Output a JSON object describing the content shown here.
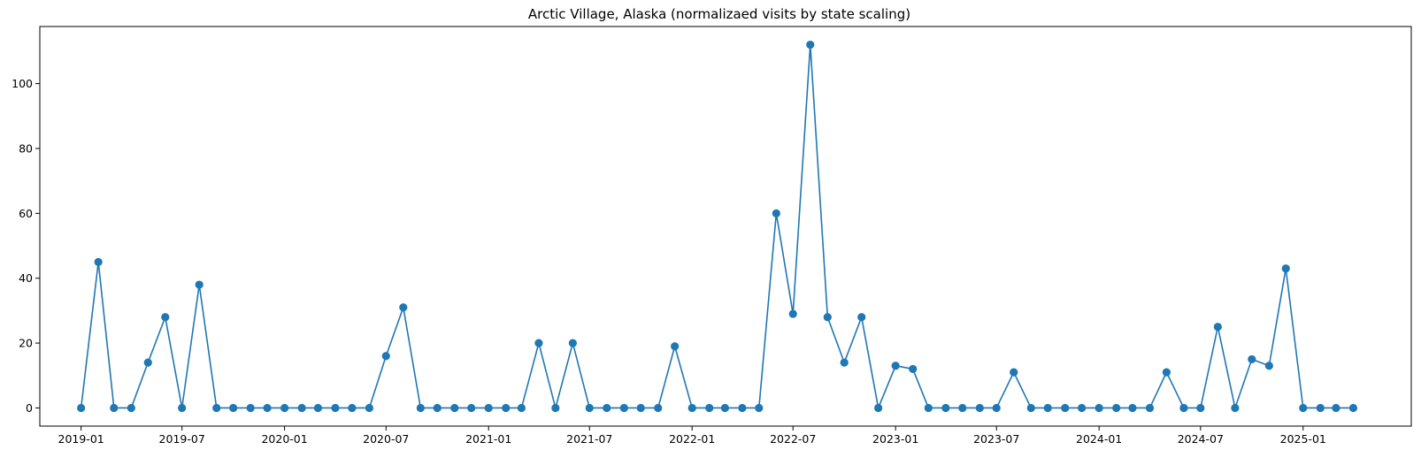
{
  "chart_data": {
    "type": "line",
    "title": "Arctic Village, Alaska (normalizaed visits by state scaling)",
    "xlabel": "",
    "ylabel": "",
    "x_tick_labels": [
      "2019-01",
      "2019-07",
      "2020-01",
      "2020-07",
      "2021-01",
      "2021-07",
      "2022-01",
      "2022-07",
      "2023-01",
      "2023-07",
      "2024-01",
      "2024-07",
      "2025-01"
    ],
    "y_ticks": [
      0,
      20,
      40,
      60,
      80,
      100
    ],
    "xlim": [
      "2018-10-19",
      "2025-07-14"
    ],
    "ylim": [
      -5.6,
      117.6
    ],
    "grid": false,
    "line_color": "#1f77b4",
    "marker": "circle",
    "series": [
      {
        "x": [
          "2019-01",
          "2019-02",
          "2019-03",
          "2019-04",
          "2019-05",
          "2019-06",
          "2019-07",
          "2019-08",
          "2019-09",
          "2019-10",
          "2019-11",
          "2019-12",
          "2020-01",
          "2020-02",
          "2020-03",
          "2020-04",
          "2020-05",
          "2020-06",
          "2020-07",
          "2020-08",
          "2020-09",
          "2020-10",
          "2020-11",
          "2020-12",
          "2021-01",
          "2021-02",
          "2021-03",
          "2021-04",
          "2021-05",
          "2021-06",
          "2021-07",
          "2021-08",
          "2021-09",
          "2021-10",
          "2021-11",
          "2021-12",
          "2022-01",
          "2022-02",
          "2022-03",
          "2022-04",
          "2022-05",
          "2022-06",
          "2022-07",
          "2022-08",
          "2022-09",
          "2022-10",
          "2022-11",
          "2022-12",
          "2023-01",
          "2023-02",
          "2023-03",
          "2023-04",
          "2023-05",
          "2023-06",
          "2023-07",
          "2023-08",
          "2023-09",
          "2023-10",
          "2023-11",
          "2023-12",
          "2024-01",
          "2024-02",
          "2024-03",
          "2024-04",
          "2024-05",
          "2024-06",
          "2024-07",
          "2024-08",
          "2024-09",
          "2024-10",
          "2024-11",
          "2024-12",
          "2025-01",
          "2025-02",
          "2025-03",
          "2025-04"
        ],
        "values": [
          0,
          45,
          0,
          0,
          14,
          28,
          0,
          38,
          0,
          0,
          0,
          0,
          0,
          0,
          0,
          0,
          0,
          0,
          16,
          31,
          0,
          0,
          0,
          0,
          0,
          0,
          0,
          20,
          0,
          20,
          0,
          0,
          0,
          0,
          0,
          19,
          0,
          0,
          0,
          0,
          0,
          60,
          29,
          112,
          28,
          14,
          28,
          0,
          13,
          12,
          0,
          0,
          0,
          0,
          0,
          11,
          0,
          0,
          0,
          0,
          0,
          0,
          0,
          0,
          11,
          0,
          0,
          25,
          0,
          15,
          13,
          43,
          0,
          0,
          0,
          0
        ]
      }
    ]
  }
}
